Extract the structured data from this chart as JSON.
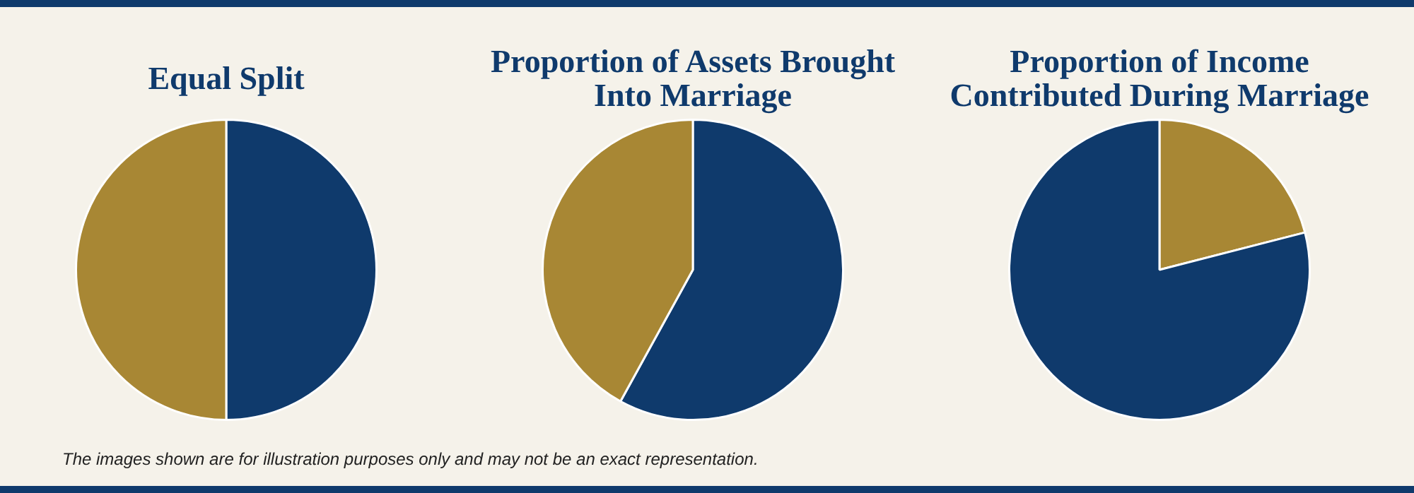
{
  "chart_data": [
    {
      "type": "pie",
      "title": "Equal Split",
      "categories": [
        null,
        null
      ],
      "values": [
        50,
        50
      ],
      "colors": [
        "#0f3a6c",
        "#a88734"
      ],
      "annotations": [
        "The images shown are for illustration purposes only and may not be an exact representation."
      ]
    },
    {
      "type": "pie",
      "title": "Proportion of Assets Brought Into Marriage",
      "categories": [
        null,
        null
      ],
      "values": [
        58,
        42
      ],
      "colors": [
        "#0f3a6c",
        "#a88734"
      ]
    },
    {
      "type": "pie",
      "title": "Proportion of Income Contributed During Marriage",
      "categories": [
        null,
        null
      ],
      "values": [
        21,
        79
      ],
      "colors": [
        "#a88734",
        "#0f3a6c"
      ]
    }
  ]
}
